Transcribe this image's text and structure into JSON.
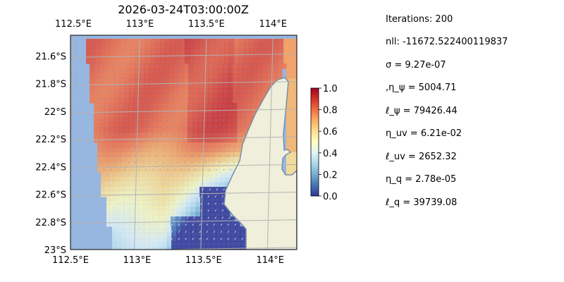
{
  "chart_data": {
    "type": "heatmap",
    "title": "2026-03-24T03:00:00Z",
    "x_ticks": [
      "112.5°E",
      "113°E",
      "113.5°E",
      "114°E"
    ],
    "x_tick_values": [
      112.5,
      113.0,
      113.5,
      114.0
    ],
    "y_ticks": [
      "21.6°S",
      "21.8°S",
      "22°S",
      "22.2°S",
      "22.4°S",
      "22.6°S",
      "22.8°S",
      "23°S"
    ],
    "y_tick_values": [
      -21.6,
      -21.8,
      -22.0,
      -22.2,
      -22.4,
      -22.6,
      -22.8,
      -23.0
    ],
    "xlim": [
      112.5,
      114.2
    ],
    "ylim": [
      -23.0,
      -21.45
    ],
    "colorbar": {
      "min": 0.0,
      "max": 1.0,
      "ticks": [
        "0.0",
        "0.2",
        "0.4",
        "0.6",
        "0.8",
        "1.0"
      ],
      "tick_values": [
        0.0,
        0.2,
        0.4,
        0.6,
        0.8,
        1.0
      ],
      "colormap": "RdYlBu_r"
    },
    "grid": true,
    "colors": {
      "ocean": "#97b6e0",
      "land": "#efefdb",
      "coast": "#7a8fa8",
      "grid": "#b3b3b3"
    },
    "field_summary": [
      {
        "region": "north offshore",
        "value": 0.85
      },
      {
        "region": "central offshore",
        "value": 0.8
      },
      {
        "region": "south-west",
        "value": 0.55
      },
      {
        "region": "south near coast",
        "value": 0.05
      },
      {
        "region": "east of peninsula",
        "value": 0.75
      }
    ]
  },
  "stats": [
    "Iterations: 200",
    "nll: -11672.522400119837",
    "σ = 9.27e-07",
    ",η_ψ = 5004.71",
    "ℓ_ψ = 79426.44",
    "η_uv = 6.21e-02",
    "ℓ_uv = 2652.32",
    "η_q = 2.78e-05",
    "ℓ_q = 39739.08"
  ]
}
